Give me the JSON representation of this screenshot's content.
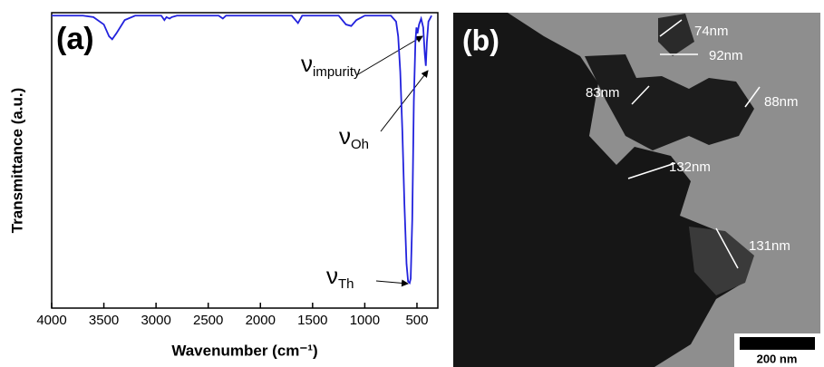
{
  "chart_data": {
    "type": "line",
    "panel_label": "(a)",
    "xlabel": "Wavenumber (cm⁻¹)",
    "ylabel": "Transmittance (a.u.)",
    "xlim": [
      4000,
      300
    ],
    "ylim": [
      0,
      1
    ],
    "xticks": [
      4000,
      3500,
      3000,
      2500,
      2000,
      1500,
      1000,
      500
    ],
    "series": [
      {
        "color": "#2222dd",
        "x": [
          4000,
          3700,
          3600,
          3500,
          3450,
          3420,
          3380,
          3300,
          3200,
          2950,
          2920,
          2900,
          2870,
          2850,
          2800,
          2400,
          2360,
          2330,
          1700,
          1640,
          1600,
          1250,
          1180,
          1130,
          1080,
          1000,
          750,
          700,
          680,
          660,
          640,
          620,
          600,
          585,
          570,
          560,
          545,
          530,
          515,
          505,
          495,
          480,
          460,
          440,
          425,
          415,
          405,
          390,
          360
        ],
        "values": [
          0.99,
          0.99,
          0.985,
          0.96,
          0.92,
          0.91,
          0.93,
          0.975,
          0.99,
          0.99,
          0.975,
          0.985,
          0.98,
          0.985,
          0.99,
          0.99,
          0.98,
          0.99,
          0.99,
          0.965,
          0.99,
          0.99,
          0.96,
          0.955,
          0.975,
          0.99,
          0.99,
          0.97,
          0.92,
          0.8,
          0.6,
          0.35,
          0.15,
          0.09,
          0.085,
          0.1,
          0.3,
          0.7,
          0.9,
          0.95,
          0.93,
          0.96,
          0.98,
          0.95,
          0.86,
          0.82,
          0.9,
          0.97,
          0.99
        ]
      }
    ],
    "annotations": [
      {
        "symbol": "ν",
        "subscript": "impurity"
      },
      {
        "symbol": "ν",
        "subscript": "Oh"
      },
      {
        "symbol": "ν",
        "subscript": "Th"
      }
    ]
  },
  "image": {
    "panel_label": "(b)",
    "measurements": [
      "74nm",
      "92nm",
      "83nm",
      "88nm",
      "132nm",
      "131nm"
    ],
    "scale_bar": "200 nm"
  }
}
